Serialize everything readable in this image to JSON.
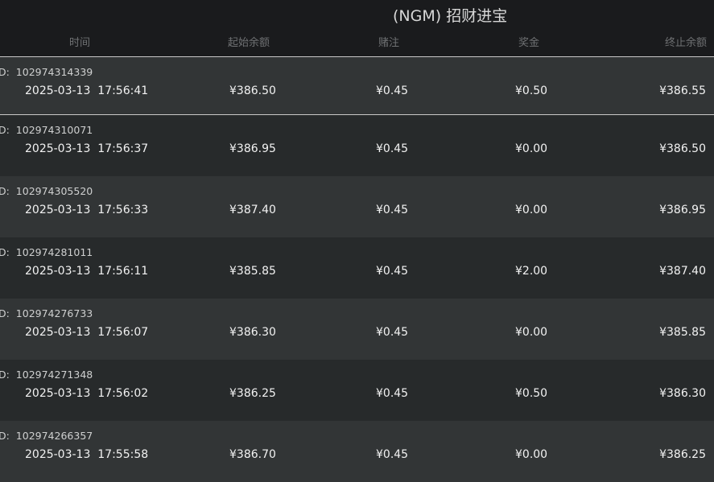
{
  "header": {
    "title": "(NGM) 招财进宝",
    "columns": [
      "时间",
      "起始余额",
      "赌注",
      "奖金",
      "终止余额"
    ]
  },
  "id_prefix": "D:",
  "rows": [
    {
      "id": "102974314339",
      "time": "2025-03-13  17:56:41",
      "start": "¥386.50",
      "bet": "¥0.45",
      "win": "¥0.50",
      "end": "¥386.55",
      "selected": true
    },
    {
      "id": "102974310071",
      "time": "2025-03-13  17:56:37",
      "start": "¥386.95",
      "bet": "¥0.45",
      "win": "¥0.00",
      "end": "¥386.50"
    },
    {
      "id": "102974305520",
      "time": "2025-03-13  17:56:33",
      "start": "¥387.40",
      "bet": "¥0.45",
      "win": "¥0.00",
      "end": "¥386.95"
    },
    {
      "id": "102974281011",
      "time": "2025-03-13  17:56:11",
      "start": "¥385.85",
      "bet": "¥0.45",
      "win": "¥2.00",
      "end": "¥387.40"
    },
    {
      "id": "102974276733",
      "time": "2025-03-13  17:56:07",
      "start": "¥386.30",
      "bet": "¥0.45",
      "win": "¥0.00",
      "end": "¥385.85"
    },
    {
      "id": "102974271348",
      "time": "2025-03-13  17:56:02",
      "start": "¥386.25",
      "bet": "¥0.45",
      "win": "¥0.50",
      "end": "¥386.30"
    },
    {
      "id": "102974266357",
      "time": "2025-03-13  17:55:58",
      "start": "¥386.70",
      "bet": "¥0.45",
      "win": "¥0.00",
      "end": "¥386.25"
    }
  ]
}
